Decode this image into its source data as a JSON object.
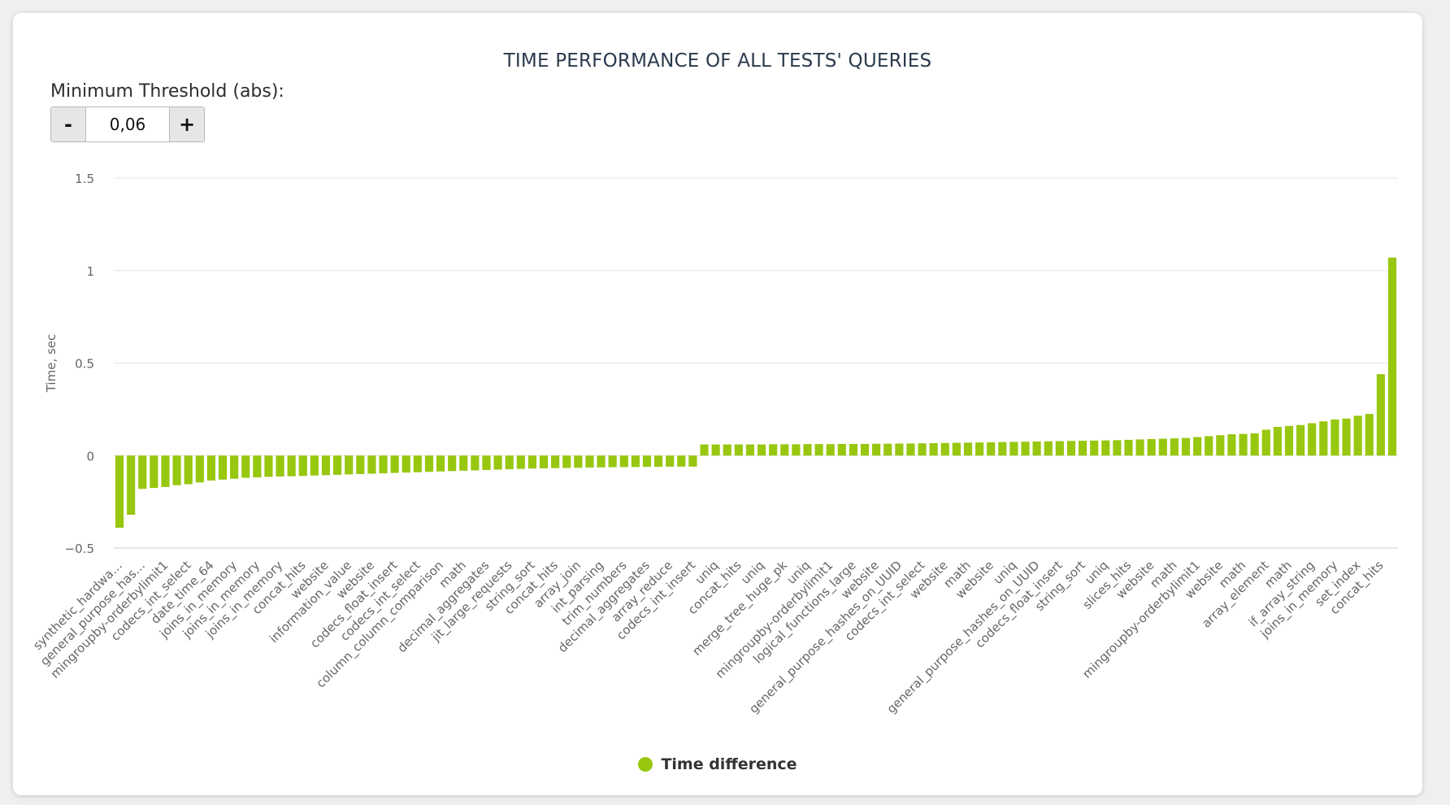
{
  "title": "TIME PERFORMANCE OF ALL TESTS' QUERIES",
  "threshold": {
    "label": "Minimum Threshold (abs):",
    "value": "0,06",
    "minus": "-",
    "plus": "+"
  },
  "legend": {
    "label": "Time difference"
  },
  "colors": {
    "bar": "#97c70f",
    "grid": "#e6e6e6",
    "axis": "#cccccc",
    "text": "#666666"
  },
  "chart_data": {
    "type": "bar",
    "title": "TIME PERFORMANCE OF ALL TESTS' QUERIES",
    "ylabel": "Time, sec",
    "xlabel": "",
    "ylim": [
      -0.5,
      1.5
    ],
    "yticks": [
      "−0.5",
      "0",
      "0.5",
      "1",
      "1.5"
    ],
    "ytick_values": [
      -0.5,
      0,
      0.5,
      1,
      1.5
    ],
    "grid": true,
    "legend_position": "bottom-center",
    "series": [
      {
        "name": "Time difference"
      }
    ],
    "categories": [
      "synthetic_hardwa…",
      "",
      "general_purpose_has…",
      "",
      "mingroupby-orderbylimit1",
      "",
      "codecs_int_select",
      "",
      "date_time_64",
      "",
      "joins_in_memory",
      "",
      "joins_in_memory",
      "",
      "joins_in_memory",
      "",
      "concat_hits",
      "",
      "website",
      "",
      "information_value",
      "",
      "website",
      "",
      "codecs_float_insert",
      "",
      "codecs_int_select",
      "",
      "column_column_comparison",
      "",
      "math",
      "",
      "decimal_aggregates",
      "",
      "jit_large_requests",
      "",
      "string_sort",
      "",
      "concat_hits",
      "",
      "array_join",
      "",
      "int_parsing",
      "",
      "trim_numbers",
      "",
      "decimal_aggregates",
      "",
      "array_reduce",
      "",
      "codecs_int_insert",
      "",
      "uniq",
      "",
      "concat_hits",
      "",
      "uniq",
      "",
      "merge_tree_huge_pk",
      "",
      "uniq",
      "",
      "mingroupby-orderbylimit1",
      "",
      "logical_functions_large",
      "",
      "website",
      "",
      "general_purpose_hashes_on_UUID",
      "",
      "codecs_int_select",
      "",
      "website",
      "",
      "math",
      "",
      "website",
      "",
      "uniq",
      "",
      "general_purpose_hashes_on_UUID",
      "",
      "codecs_float_insert",
      "",
      "string_sort",
      "",
      "uniq",
      "",
      "slices_hits",
      "",
      "website",
      "",
      "math",
      "",
      "mingroupby-orderbylimit1",
      "",
      "website",
      "",
      "math",
      "",
      "array_element",
      "",
      "math",
      "",
      "if_array_string",
      "",
      "joins_in_memory",
      "",
      "set_index",
      "",
      "concat_hits",
      ""
    ],
    "values": [
      -0.39,
      -0.32,
      -0.18,
      -0.175,
      -0.17,
      -0.16,
      -0.155,
      -0.145,
      -0.135,
      -0.13,
      -0.125,
      -0.12,
      -0.118,
      -0.115,
      -0.113,
      -0.112,
      -0.11,
      -0.108,
      -0.106,
      -0.104,
      -0.102,
      -0.1,
      -0.098,
      -0.096,
      -0.094,
      -0.092,
      -0.09,
      -0.088,
      -0.086,
      -0.084,
      -0.082,
      -0.08,
      -0.078,
      -0.076,
      -0.074,
      -0.072,
      -0.07,
      -0.069,
      -0.068,
      -0.067,
      -0.066,
      -0.065,
      -0.064,
      -0.063,
      -0.062,
      -0.062,
      -0.061,
      -0.061,
      -0.06,
      -0.06,
      -0.06,
      0.06,
      0.06,
      0.06,
      0.06,
      0.06,
      0.06,
      0.061,
      0.061,
      0.061,
      0.062,
      0.062,
      0.062,
      0.063,
      0.063,
      0.063,
      0.064,
      0.064,
      0.065,
      0.065,
      0.066,
      0.067,
      0.068,
      0.069,
      0.07,
      0.071,
      0.072,
      0.073,
      0.074,
      0.075,
      0.076,
      0.077,
      0.078,
      0.079,
      0.08,
      0.081,
      0.082,
      0.083,
      0.085,
      0.087,
      0.089,
      0.091,
      0.093,
      0.095,
      0.1,
      0.105,
      0.11,
      0.115,
      0.117,
      0.12,
      0.14,
      0.155,
      0.16,
      0.165,
      0.175,
      0.185,
      0.195,
      0.2,
      0.215,
      0.225,
      0.44,
      1.07
    ]
  }
}
